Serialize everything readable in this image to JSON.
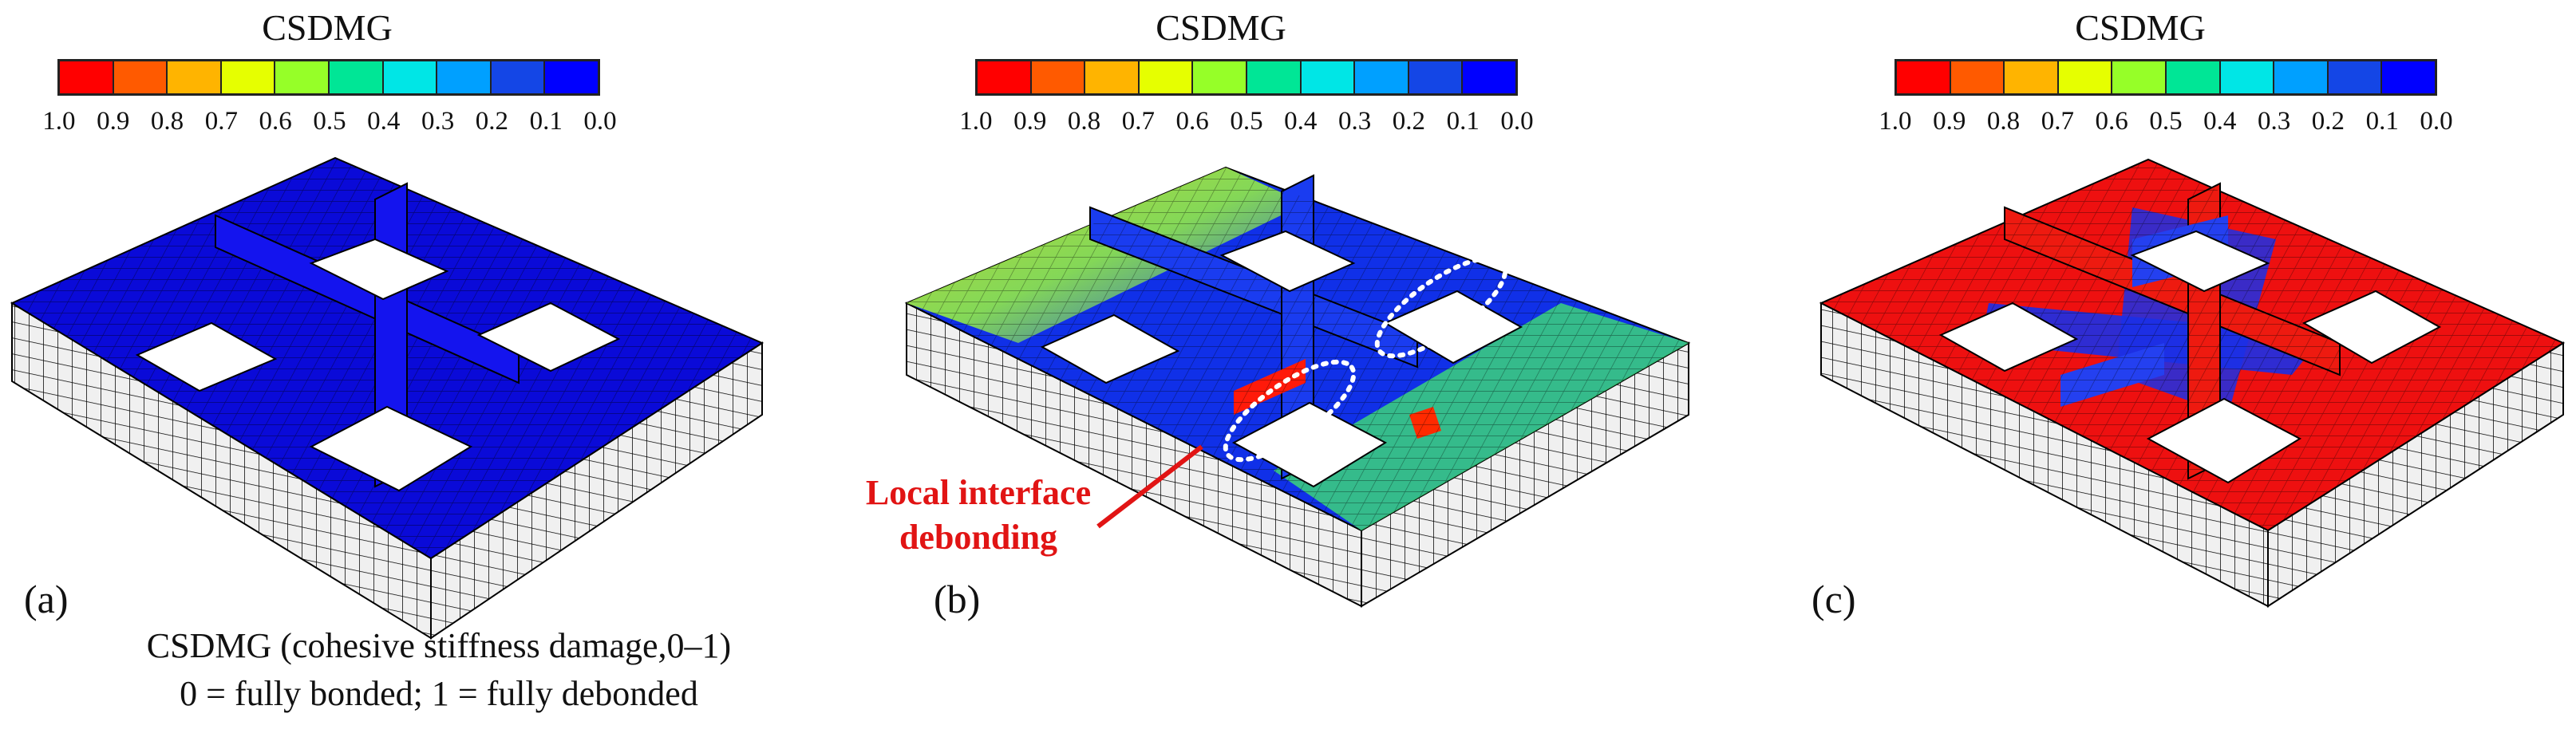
{
  "legend": {
    "title": "CSDMG",
    "colors": [
      "#ff0000",
      "#ff5a00",
      "#ffb400",
      "#e6ff00",
      "#96ff28",
      "#00e696",
      "#00e6e6",
      "#00a0ff",
      "#1446e6",
      "#0000ff"
    ],
    "ticks": [
      "1.0",
      "0.9",
      "0.8",
      "0.7",
      "0.6",
      "0.5",
      "0.4",
      "0.3",
      "0.2",
      "0.1",
      "0.0"
    ]
  },
  "panels": [
    {
      "label": "(a)"
    },
    {
      "label": "(b)"
    },
    {
      "label": "(c)"
    }
  ],
  "annotation": {
    "line1": "Local interface",
    "line2": "debonding"
  },
  "note": {
    "line1": "CSDMG (cohesive stiffness damage,0–1)",
    "line2": "0 = fully bonded; 1 = fully debonded"
  }
}
